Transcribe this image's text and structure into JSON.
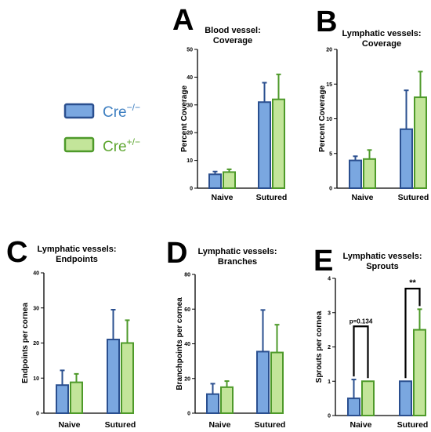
{
  "legend": {
    "items": [
      {
        "label": "Cre",
        "superscript": "−/−",
        "fill": "#7aa7e0",
        "stroke": "#2a4f8f",
        "text_color": "#3e7fc1"
      },
      {
        "label": "Cre",
        "superscript": "+/−",
        "fill": "#c3e59a",
        "stroke": "#4e9a2a",
        "text_color": "#5ea630"
      }
    ]
  },
  "chart_data": [
    {
      "panel": "A",
      "type": "bar",
      "title": [
        "Blood vessel:",
        "Coverage"
      ],
      "ylabel": "Percent Coverage",
      "categories": [
        "Naive",
        "Sutured"
      ],
      "ylim": [
        0,
        50
      ],
      "yticks": [
        0,
        10,
        20,
        30,
        40,
        50
      ],
      "series": [
        {
          "values": [
            5,
            31
          ],
          "errors": [
            1,
            7
          ]
        },
        {
          "values": [
            5.8,
            32
          ],
          "errors": [
            1,
            9
          ]
        }
      ],
      "annotations": []
    },
    {
      "panel": "B",
      "type": "bar",
      "title": [
        "Lymphatic vessels:",
        "Coverage"
      ],
      "ylabel": "Percent Coverage",
      "categories": [
        "Naive",
        "Sutured"
      ],
      "ylim": [
        0,
        20
      ],
      "yticks": [
        0,
        5,
        10,
        15,
        20
      ],
      "series": [
        {
          "values": [
            4,
            8.5
          ],
          "errors": [
            0.6,
            5.6
          ]
        },
        {
          "values": [
            4.2,
            13.1
          ],
          "errors": [
            1.3,
            3.7
          ]
        }
      ],
      "annotations": []
    },
    {
      "panel": "C",
      "type": "bar",
      "title": [
        "Lymphatic vessels:",
        "Endpoints"
      ],
      "ylabel": "Endpoints per cornea",
      "categories": [
        "Naive",
        "Sutured"
      ],
      "ylim": [
        0,
        40
      ],
      "yticks": [
        0,
        10,
        20,
        30,
        40
      ],
      "series": [
        {
          "values": [
            8,
            21
          ],
          "errors": [
            4.2,
            8.5
          ]
        },
        {
          "values": [
            8.8,
            20
          ],
          "errors": [
            2.4,
            6.5
          ]
        }
      ],
      "annotations": []
    },
    {
      "panel": "D",
      "type": "bar",
      "title": [
        "Lymphatic vessels:",
        "Branches"
      ],
      "ylabel": "Branchpoints per cornea",
      "categories": [
        "Naive",
        "Sutured"
      ],
      "ylim": [
        0,
        80
      ],
      "yticks": [
        0,
        20,
        40,
        60,
        80
      ],
      "series": [
        {
          "values": [
            11,
            35.5
          ],
          "errors": [
            6,
            24
          ]
        },
        {
          "values": [
            15,
            35
          ],
          "errors": [
            3.5,
            16
          ]
        }
      ],
      "annotations": []
    },
    {
      "panel": "E",
      "type": "bar",
      "title": [
        "Lymphatic vessels:",
        "Sprouts"
      ],
      "ylabel": "Sprouts per cornea",
      "categories": [
        "Naive",
        "Sutured"
      ],
      "ylim": [
        0,
        4
      ],
      "yticks": [
        0,
        1,
        2,
        3,
        4
      ],
      "series": [
        {
          "values": [
            0.5,
            1
          ],
          "errors": [
            0.55,
            0
          ]
        },
        {
          "values": [
            1,
            2.5
          ],
          "errors": [
            0,
            0.6
          ]
        }
      ],
      "annotations": [
        {
          "category": 0,
          "text": "p=0.134",
          "level": 2.6
        },
        {
          "category": 1,
          "text": "**",
          "level": 3.7
        }
      ]
    }
  ]
}
